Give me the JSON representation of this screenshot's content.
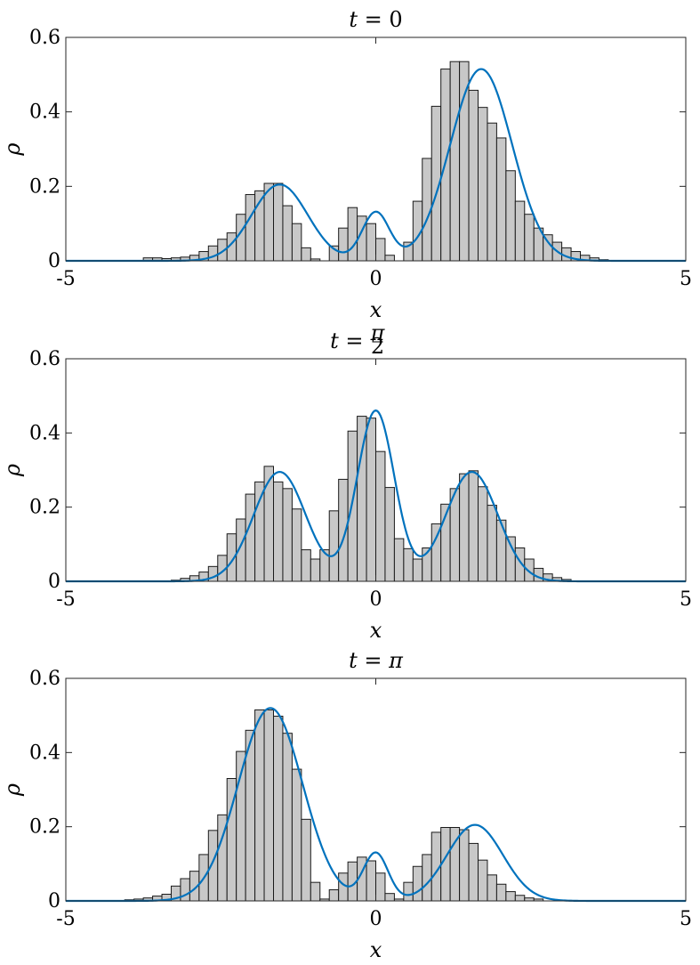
{
  "chart_data": [
    {
      "type": "bar",
      "title": "t = 0",
      "title_math": {
        "lhs": "t",
        "rhs": "0"
      },
      "xlabel": "x",
      "ylabel": "ρ",
      "xlim": [
        -5,
        5
      ],
      "ylim": [
        0,
        0.6
      ],
      "xticks": [
        -5,
        0,
        5
      ],
      "yticks": [
        0,
        0.2,
        0.4,
        0.6
      ],
      "xtick_labels": [
        "-5",
        "0",
        "5"
      ],
      "ytick_labels": [
        "0",
        "0.2",
        "0.4",
        "0.6"
      ],
      "bin_start": -3.75,
      "bin_width": 0.15,
      "values": [
        0.008,
        0.008,
        0.006,
        0.008,
        0.01,
        0.015,
        0.025,
        0.04,
        0.058,
        0.075,
        0.125,
        0.178,
        0.188,
        0.208,
        0.208,
        0.148,
        0.1,
        0.035,
        0.005,
        0.0,
        0.04,
        0.088,
        0.143,
        0.12,
        0.1,
        0.06,
        0.015,
        0.0,
        0.05,
        0.16,
        0.275,
        0.415,
        0.515,
        0.535,
        0.535,
        0.458,
        0.412,
        0.37,
        0.33,
        0.242,
        0.16,
        0.125,
        0.088,
        0.07,
        0.05,
        0.035,
        0.025,
        0.015,
        0.008,
        0.003
      ],
      "series": [
        {
          "kind": "gaussian-mixture",
          "color": "#0072bd",
          "components": [
            {
              "mu": -1.55,
              "sigma": 0.45,
              "amp": 0.205
            },
            {
              "mu": 0.0,
              "sigma": 0.22,
              "amp": 0.13
            },
            {
              "mu": 1.7,
              "sigma": 0.5,
              "amp": 0.515
            }
          ]
        }
      ]
    },
    {
      "type": "bar",
      "title": "t = π/2",
      "title_math": {
        "lhs": "t",
        "num": "π",
        "den": "2"
      },
      "xlabel": "x",
      "ylabel": "ρ",
      "xlim": [
        -5,
        5
      ],
      "ylim": [
        0,
        0.6
      ],
      "xticks": [
        -5,
        0,
        5
      ],
      "yticks": [
        0,
        0.2,
        0.4,
        0.6
      ],
      "xtick_labels": [
        "-5",
        "0",
        "5"
      ],
      "ytick_labels": [
        "0",
        "0.2",
        "0.4",
        "0.6"
      ],
      "bin_start": -3.3,
      "bin_width": 0.15,
      "values": [
        0.003,
        0.008,
        0.015,
        0.025,
        0.04,
        0.07,
        0.128,
        0.168,
        0.235,
        0.268,
        0.31,
        0.268,
        0.25,
        0.195,
        0.085,
        0.06,
        0.085,
        0.19,
        0.275,
        0.405,
        0.445,
        0.44,
        0.35,
        0.253,
        0.115,
        0.088,
        0.06,
        0.09,
        0.155,
        0.208,
        0.25,
        0.29,
        0.298,
        0.255,
        0.205,
        0.165,
        0.12,
        0.09,
        0.06,
        0.035,
        0.02,
        0.01,
        0.005
      ],
      "series": [
        {
          "kind": "gaussian-mixture",
          "color": "#0072bd",
          "components": [
            {
              "mu": -1.55,
              "sigma": 0.42,
              "amp": 0.295
            },
            {
              "mu": 0.0,
              "sigma": 0.3,
              "amp": 0.46
            },
            {
              "mu": 1.55,
              "sigma": 0.42,
              "amp": 0.295
            }
          ]
        }
      ]
    },
    {
      "type": "bar",
      "title": "t = π",
      "title_math": {
        "lhs": "t",
        "rhs": "π"
      },
      "xlabel": "x",
      "ylabel": "ρ",
      "xlim": [
        -5,
        5
      ],
      "ylim": [
        0,
        0.6
      ],
      "xticks": [
        -5,
        0,
        5
      ],
      "yticks": [
        0,
        0.2,
        0.4,
        0.6
      ],
      "xtick_labels": [
        "-5",
        "0",
        "5"
      ],
      "ytick_labels": [
        "0",
        "0.2",
        "0.4",
        "0.6"
      ],
      "bin_start": -4.05,
      "bin_width": 0.15,
      "values": [
        0.003,
        0.005,
        0.008,
        0.013,
        0.018,
        0.04,
        0.06,
        0.08,
        0.125,
        0.19,
        0.232,
        0.33,
        0.403,
        0.46,
        0.515,
        0.515,
        0.498,
        0.452,
        0.355,
        0.22,
        0.05,
        0.005,
        0.03,
        0.075,
        0.105,
        0.118,
        0.108,
        0.075,
        0.02,
        0.005,
        0.05,
        0.093,
        0.125,
        0.185,
        0.198,
        0.198,
        0.192,
        0.155,
        0.11,
        0.07,
        0.045,
        0.025,
        0.015,
        0.008,
        0.005
      ],
      "series": [
        {
          "kind": "gaussian-mixture",
          "color": "#0072bd",
          "components": [
            {
              "mu": -1.7,
              "sigma": 0.52,
              "amp": 0.52
            },
            {
              "mu": 0.0,
              "sigma": 0.2,
              "amp": 0.128
            },
            {
              "mu": 1.6,
              "sigma": 0.45,
              "amp": 0.205
            }
          ]
        }
      ]
    }
  ]
}
